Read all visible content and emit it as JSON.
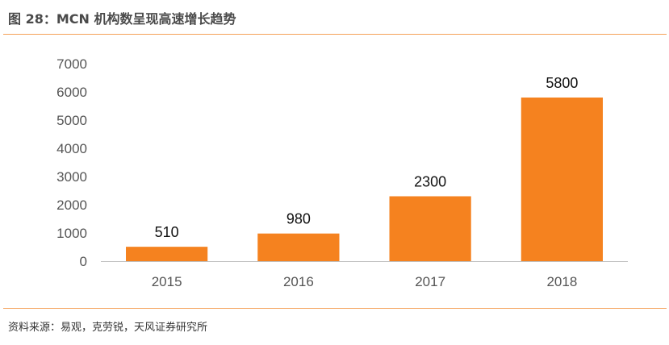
{
  "header": {
    "title": "图 28：MCN 机构数呈现高速增长趋势"
  },
  "footer": {
    "source": "资料来源：易观，克劳锐，天风证券研究所"
  },
  "colors": {
    "bar": "#f5821f",
    "rule": "#f5a25a",
    "axis": "#bfbfbf"
  },
  "chart_data": {
    "type": "bar",
    "title": "图 28：MCN 机构数呈现高速增长趋势",
    "categories": [
      "2015",
      "2016",
      "2017",
      "2018"
    ],
    "values": [
      510,
      980,
      2300,
      5800
    ],
    "data_labels": [
      "510",
      "980",
      "2300",
      "5800"
    ],
    "ylim": [
      0,
      7000
    ],
    "yticks": [
      0,
      1000,
      2000,
      3000,
      4000,
      5000,
      6000,
      7000
    ],
    "xlabel": "",
    "ylabel": "",
    "grid": false,
    "legend": "none"
  }
}
